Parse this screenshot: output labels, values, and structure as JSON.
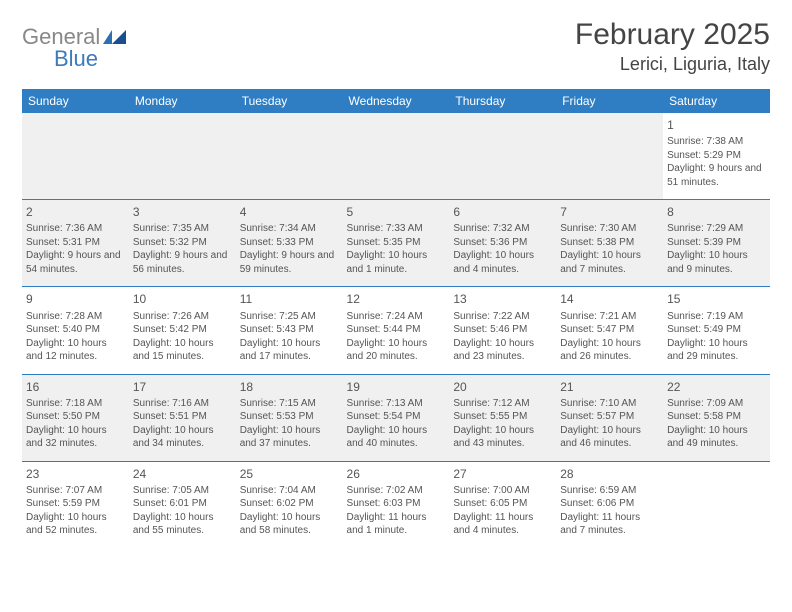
{
  "logo": {
    "general": "General",
    "blue": "Blue"
  },
  "title": "February 2025",
  "location": "Lerici, Liguria, Italy",
  "dayHeaders": [
    "Sunday",
    "Monday",
    "Tuesday",
    "Wednesday",
    "Thursday",
    "Friday",
    "Saturday"
  ],
  "colors": {
    "header_bg": "#2f7dc3",
    "header_text": "#ffffff",
    "text": "#555555",
    "alt_row": "#f0f0f0",
    "separator": "#2f7dc3"
  },
  "days": {
    "1": {
      "sunrise": "7:38 AM",
      "sunset": "5:29 PM",
      "daylight": "9 hours and 51 minutes."
    },
    "2": {
      "sunrise": "7:36 AM",
      "sunset": "5:31 PM",
      "daylight": "9 hours and 54 minutes."
    },
    "3": {
      "sunrise": "7:35 AM",
      "sunset": "5:32 PM",
      "daylight": "9 hours and 56 minutes."
    },
    "4": {
      "sunrise": "7:34 AM",
      "sunset": "5:33 PM",
      "daylight": "9 hours and 59 minutes."
    },
    "5": {
      "sunrise": "7:33 AM",
      "sunset": "5:35 PM",
      "daylight": "10 hours and 1 minute."
    },
    "6": {
      "sunrise": "7:32 AM",
      "sunset": "5:36 PM",
      "daylight": "10 hours and 4 minutes."
    },
    "7": {
      "sunrise": "7:30 AM",
      "sunset": "5:38 PM",
      "daylight": "10 hours and 7 minutes."
    },
    "8": {
      "sunrise": "7:29 AM",
      "sunset": "5:39 PM",
      "daylight": "10 hours and 9 minutes."
    },
    "9": {
      "sunrise": "7:28 AM",
      "sunset": "5:40 PM",
      "daylight": "10 hours and 12 minutes."
    },
    "10": {
      "sunrise": "7:26 AM",
      "sunset": "5:42 PM",
      "daylight": "10 hours and 15 minutes."
    },
    "11": {
      "sunrise": "7:25 AM",
      "sunset": "5:43 PM",
      "daylight": "10 hours and 17 minutes."
    },
    "12": {
      "sunrise": "7:24 AM",
      "sunset": "5:44 PM",
      "daylight": "10 hours and 20 minutes."
    },
    "13": {
      "sunrise": "7:22 AM",
      "sunset": "5:46 PM",
      "daylight": "10 hours and 23 minutes."
    },
    "14": {
      "sunrise": "7:21 AM",
      "sunset": "5:47 PM",
      "daylight": "10 hours and 26 minutes."
    },
    "15": {
      "sunrise": "7:19 AM",
      "sunset": "5:49 PM",
      "daylight": "10 hours and 29 minutes."
    },
    "16": {
      "sunrise": "7:18 AM",
      "sunset": "5:50 PM",
      "daylight": "10 hours and 32 minutes."
    },
    "17": {
      "sunrise": "7:16 AM",
      "sunset": "5:51 PM",
      "daylight": "10 hours and 34 minutes."
    },
    "18": {
      "sunrise": "7:15 AM",
      "sunset": "5:53 PM",
      "daylight": "10 hours and 37 minutes."
    },
    "19": {
      "sunrise": "7:13 AM",
      "sunset": "5:54 PM",
      "daylight": "10 hours and 40 minutes."
    },
    "20": {
      "sunrise": "7:12 AM",
      "sunset": "5:55 PM",
      "daylight": "10 hours and 43 minutes."
    },
    "21": {
      "sunrise": "7:10 AM",
      "sunset": "5:57 PM",
      "daylight": "10 hours and 46 minutes."
    },
    "22": {
      "sunrise": "7:09 AM",
      "sunset": "5:58 PM",
      "daylight": "10 hours and 49 minutes."
    },
    "23": {
      "sunrise": "7:07 AM",
      "sunset": "5:59 PM",
      "daylight": "10 hours and 52 minutes."
    },
    "24": {
      "sunrise": "7:05 AM",
      "sunset": "6:01 PM",
      "daylight": "10 hours and 55 minutes."
    },
    "25": {
      "sunrise": "7:04 AM",
      "sunset": "6:02 PM",
      "daylight": "10 hours and 58 minutes."
    },
    "26": {
      "sunrise": "7:02 AM",
      "sunset": "6:03 PM",
      "daylight": "11 hours and 1 minute."
    },
    "27": {
      "sunrise": "7:00 AM",
      "sunset": "6:05 PM",
      "daylight": "11 hours and 4 minutes."
    },
    "28": {
      "sunrise": "6:59 AM",
      "sunset": "6:06 PM",
      "daylight": "11 hours and 7 minutes."
    }
  },
  "labels": {
    "sunrise": "Sunrise: ",
    "sunset": "Sunset: ",
    "daylight": "Daylight: "
  },
  "grid": {
    "first_day_column": 6,
    "num_days": 28,
    "rows_shaded": [
      1,
      3
    ]
  }
}
